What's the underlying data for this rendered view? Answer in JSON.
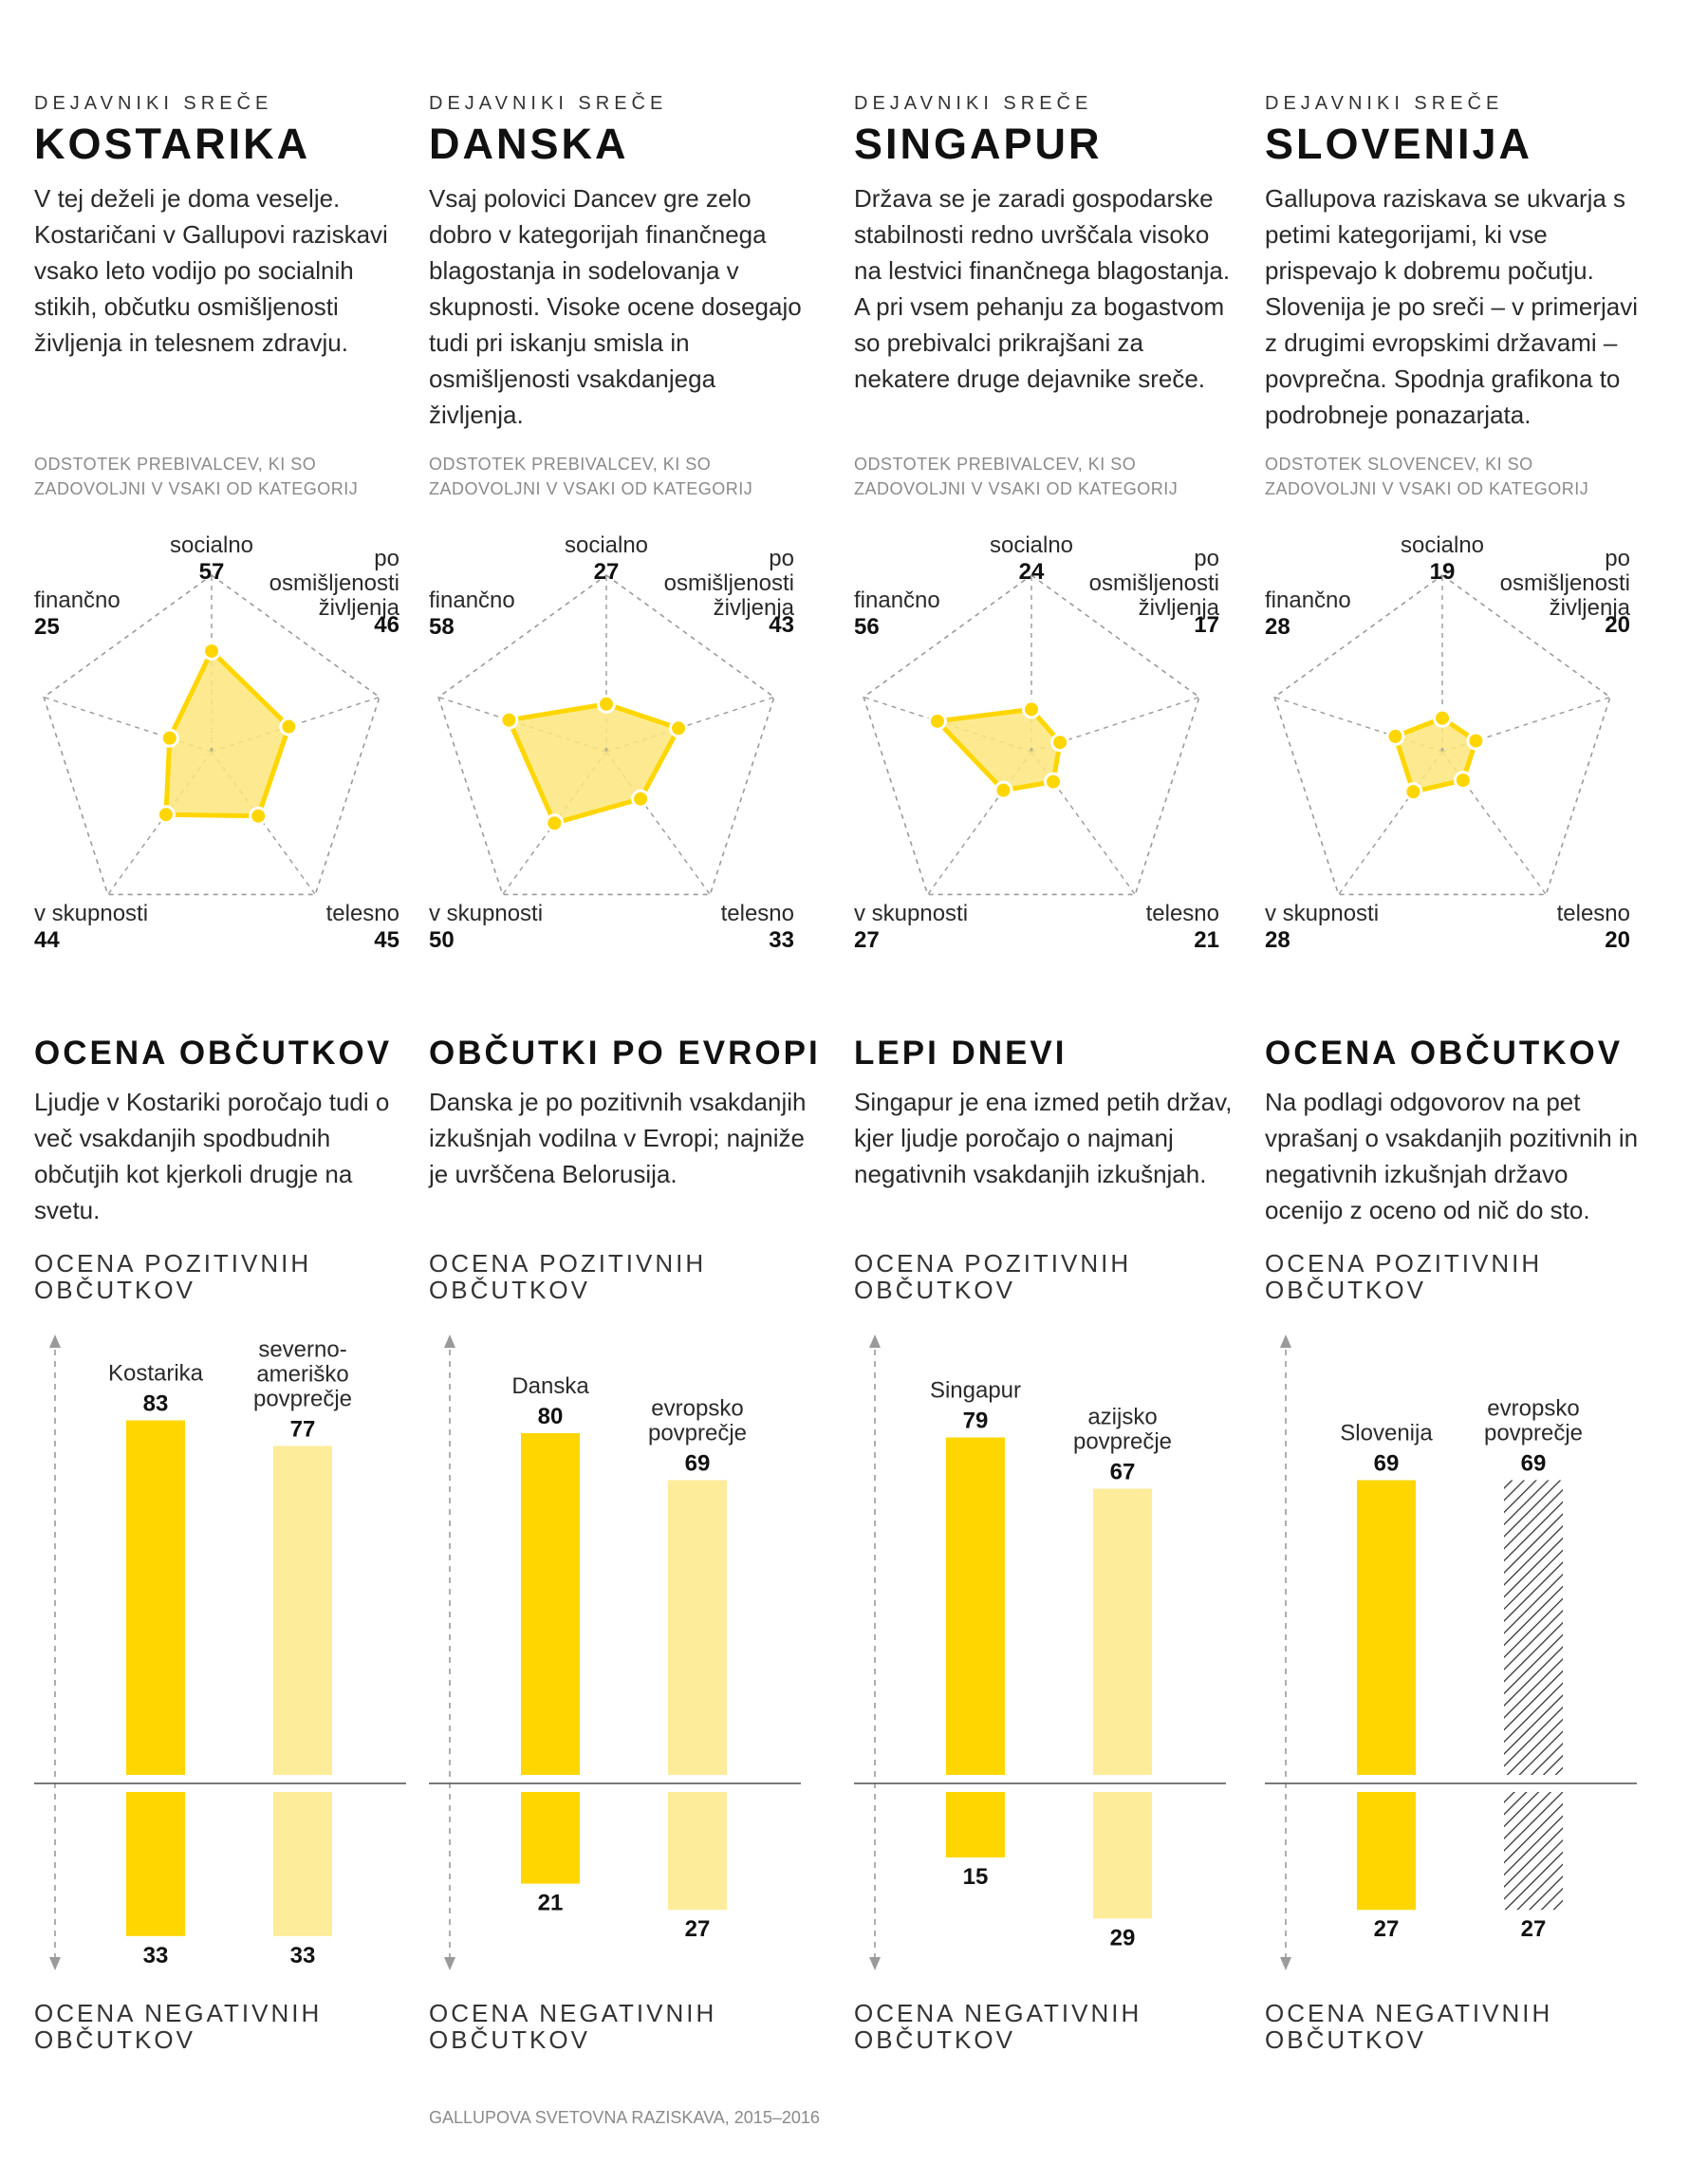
{
  "panels": [
    {
      "kicker": "DEJAVNIKI SREČE",
      "country": "KOSTARIKA",
      "intro": "V tej deželi je doma veselje. Kostaričani v Gallupovi raziskavi vsako leto vodijo po socialnih stikih, občutku osmišljenosti življenja in telesnem zdravju.",
      "note": "ODSTOTEK PREBIVALCEV, KI SO ZADOVOLJNI V VSAKI OD KATEGORIJ",
      "section_title": "OCENA OBČUTKOV",
      "section_text": "Ljudje v Kostariki poročajo tudi o več vsakdanjih spodbudnih občutjih kot kjerkoli drugje na svetu."
    },
    {
      "kicker": "DEJAVNIKI SREČE",
      "country": "DANSKA",
      "intro": "Vsaj polovici Dancev gre zelo dobro v kategorijah finančnega blagostanja in sodelovanja v skupnosti. Visoke ocene dosegajo tudi pri iskanju smisla in osmišljenosti vsakdanjega življenja.",
      "note": "ODSTOTEK PREBIVALCEV, KI SO ZADOVOLJNI V VSAKI OD KATEGORIJ",
      "section_title": "OBČUTKI PO EVROPI",
      "section_text": "Danska je po pozitivnih vsakdanjih izkušnjah vodilna v Evropi; najniže je uvrščena Belorusija."
    },
    {
      "kicker": "DEJAVNIKI SREČE",
      "country": "SINGAPUR",
      "intro": "Država se je zaradi gospodarske stabilnosti redno uvrščala visoko na lestvici finančnega blagostanja. A pri vsem pehanju za bogastvom so prebivalci prikrajšani za nekatere druge dejavnike sreče.",
      "note": "ODSTOTEK PREBIVALCEV, KI SO ZADOVOLJNI V VSAKI OD KATEGORIJ",
      "section_title": "LEPI DNEVI",
      "section_text": "Singapur je ena izmed petih držav, kjer ljudje poročajo o najmanj negativnih vsakdanjih izkušnjah."
    },
    {
      "kicker": "DEJAVNIKI SREČE",
      "country": "SLOVENIJA",
      "intro": "Gallupova raziskava se ukvarja s petimi kategorijami, ki vse prispevajo k dobremu počutju. Slovenija je po sreči – v primerjavi z drugimi evropskimi državami – povprečna. Spodnja grafikona to podrobneje ponazarjata.",
      "note": "ODSTOTEK SLOVENCEV, KI SO ZADOVOLJNI V VSAKI OD KATEGORIJ",
      "section_title": "OCENA OBČUTKOV",
      "section_text": "Na podlagi odgovorov na pet vprašanj o vsakdanjih pozitivnih in negativnih izkušnjah državo ocenijo z oceno od nič do sto."
    }
  ],
  "axis_top_label": "OCENA POZITIVNIH OBČUTKOV",
  "axis_bottom_label": "OCENA NEGATIVNIH OBČUTKOV",
  "source": "GALLUPOVA SVETOVNA RAZISKAVA, 2015–2016",
  "colors": {
    "accent": "#ffd600",
    "accent_fill": "#fde67c",
    "light_bar": "#fdec99",
    "grid": "#9a9a9a",
    "hatch": "#333333"
  },
  "chart_data": [
    {
      "type": "radar",
      "country": "KOSTARIKA",
      "categories": [
        "socialno",
        "po osmišljenosti življenja",
        "telesno",
        "v skupnosti",
        "finančno"
      ],
      "values": [
        57,
        46,
        45,
        44,
        25
      ],
      "range": [
        0,
        100
      ]
    },
    {
      "type": "radar",
      "country": "DANSKA",
      "categories": [
        "socialno",
        "po osmišljenosti življenja",
        "telesno",
        "v skupnosti",
        "finančno"
      ],
      "values": [
        27,
        43,
        33,
        50,
        58
      ],
      "range": [
        0,
        100
      ]
    },
    {
      "type": "radar",
      "country": "SINGAPUR",
      "categories": [
        "socialno",
        "po osmišljenosti življenja",
        "telesno",
        "v skupnosti",
        "finančno"
      ],
      "values": [
        24,
        17,
        21,
        27,
        56
      ],
      "range": [
        0,
        100
      ]
    },
    {
      "type": "radar",
      "country": "SLOVENIJA",
      "categories": [
        "socialno",
        "po osmišljenosti življenja",
        "telesno",
        "v skupnosti",
        "finančno"
      ],
      "values": [
        19,
        20,
        20,
        28,
        28
      ],
      "range": [
        0,
        100
      ]
    },
    {
      "type": "bar",
      "categories": [
        "Kostarika",
        "severno-ameriško povprečje"
      ],
      "series": [
        {
          "name": "OCENA POZITIVNIH OBČUTKOV",
          "values": [
            83,
            77
          ]
        },
        {
          "name": "OCENA NEGATIVNIH OBČUTKOV",
          "values": [
            33,
            33
          ]
        }
      ],
      "styles": [
        "solid",
        "light"
      ]
    },
    {
      "type": "bar",
      "categories": [
        "Danska",
        "evropsko povprečje"
      ],
      "series": [
        {
          "name": "OCENA POZITIVNIH OBČUTKOV",
          "values": [
            80,
            69
          ]
        },
        {
          "name": "OCENA NEGATIVNIH OBČUTKOV",
          "values": [
            21,
            27
          ]
        }
      ],
      "styles": [
        "solid",
        "light"
      ]
    },
    {
      "type": "bar",
      "categories": [
        "Singapur",
        "azijsko povprečje"
      ],
      "series": [
        {
          "name": "OCENA POZITIVNIH OBČUTKOV",
          "values": [
            79,
            67
          ]
        },
        {
          "name": "OCENA NEGATIVNIH OBČUTKOV",
          "values": [
            15,
            29
          ]
        }
      ],
      "styles": [
        "solid",
        "light"
      ]
    },
    {
      "type": "bar",
      "categories": [
        "Slovenija",
        "evropsko povprečje"
      ],
      "series": [
        {
          "name": "OCENA POZITIVNIH OBČUTKOV",
          "values": [
            69,
            69
          ]
        },
        {
          "name": "OCENA NEGATIVNIH OBČUTKOV",
          "values": [
            27,
            27
          ]
        }
      ],
      "styles": [
        "solid",
        "hatched"
      ]
    }
  ]
}
